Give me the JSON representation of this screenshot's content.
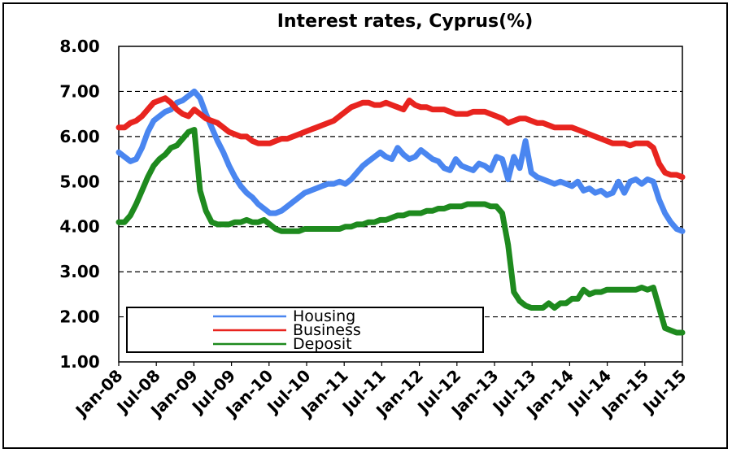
{
  "chart_data": {
    "type": "line",
    "title": "Interest rates, Cyprus(%)",
    "xlabel": "",
    "ylabel": "",
    "ylim": [
      1,
      8
    ],
    "yticks": [
      "1.00",
      "2.00",
      "3.00",
      "4.00",
      "5.00",
      "6.00",
      "7.00",
      "8.00"
    ],
    "grid": "horizontal dashed",
    "legend": "bottom-left",
    "x_ticks": [
      "Jan-08",
      "Jul-08",
      "Jan-09",
      "Jul-09",
      "Jan-10",
      "Jul-10",
      "Jan-11",
      "Jul-11",
      "Jan-12",
      "Jul-12",
      "Jan-13",
      "Jul-13",
      "Jan-14",
      "Jul-14",
      "Jan-15",
      "Jul-15"
    ],
    "series": [
      {
        "name": "Housing",
        "color": "#4a86f0",
        "values": [
          5.65,
          5.55,
          5.45,
          5.5,
          5.75,
          6.1,
          6.35,
          6.45,
          6.55,
          6.6,
          6.75,
          6.8,
          6.9,
          7.0,
          6.85,
          6.5,
          6.2,
          5.9,
          5.65,
          5.35,
          5.1,
          4.9,
          4.75,
          4.65,
          4.5,
          4.4,
          4.3,
          4.3,
          4.35,
          4.45,
          4.55,
          4.65,
          4.75,
          4.8,
          4.85,
          4.9,
          4.95,
          4.95,
          5.0,
          4.95,
          5.05,
          5.2,
          5.35,
          5.45,
          5.55,
          5.65,
          5.55,
          5.5,
          5.75,
          5.6,
          5.5,
          5.55,
          5.7,
          5.6,
          5.5,
          5.45,
          5.3,
          5.25,
          5.5,
          5.35,
          5.3,
          5.25,
          5.4,
          5.35,
          5.25,
          5.55,
          5.5,
          5.05,
          5.55,
          5.3,
          5.9,
          5.2,
          5.1,
          5.05,
          5.0,
          4.95,
          5.0,
          4.95,
          4.9,
          5.0,
          4.8,
          4.85,
          4.75,
          4.8,
          4.7,
          4.75,
          5.0,
          4.75,
          5.0,
          5.05,
          4.95,
          5.05,
          5.0,
          4.6,
          4.3,
          4.1,
          3.95,
          3.9
        ]
      },
      {
        "name": "Business",
        "color": "#e8241f",
        "values": [
          6.2,
          6.2,
          6.3,
          6.35,
          6.45,
          6.6,
          6.75,
          6.8,
          6.85,
          6.75,
          6.6,
          6.5,
          6.45,
          6.6,
          6.5,
          6.4,
          6.35,
          6.3,
          6.2,
          6.1,
          6.05,
          6.0,
          6.0,
          5.9,
          5.85,
          5.85,
          5.85,
          5.9,
          5.95,
          5.95,
          6.0,
          6.05,
          6.1,
          6.15,
          6.2,
          6.25,
          6.3,
          6.35,
          6.45,
          6.55,
          6.65,
          6.7,
          6.75,
          6.75,
          6.7,
          6.7,
          6.75,
          6.7,
          6.65,
          6.6,
          6.8,
          6.7,
          6.65,
          6.65,
          6.6,
          6.6,
          6.6,
          6.55,
          6.5,
          6.5,
          6.5,
          6.55,
          6.55,
          6.55,
          6.5,
          6.45,
          6.4,
          6.3,
          6.35,
          6.4,
          6.4,
          6.35,
          6.3,
          6.3,
          6.25,
          6.2,
          6.2,
          6.2,
          6.2,
          6.15,
          6.1,
          6.05,
          6.0,
          5.95,
          5.9,
          5.85,
          5.85,
          5.85,
          5.8,
          5.85,
          5.85,
          5.85,
          5.75,
          5.4,
          5.2,
          5.15,
          5.15,
          5.1
        ]
      },
      {
        "name": "Deposit",
        "color": "#1e8a1e",
        "values": [
          4.1,
          4.1,
          4.25,
          4.5,
          4.8,
          5.1,
          5.35,
          5.5,
          5.6,
          5.75,
          5.8,
          5.95,
          6.1,
          6.15,
          4.8,
          4.35,
          4.1,
          4.05,
          4.05,
          4.05,
          4.1,
          4.1,
          4.15,
          4.1,
          4.1,
          4.15,
          4.05,
          3.95,
          3.9,
          3.9,
          3.9,
          3.9,
          3.95,
          3.95,
          3.95,
          3.95,
          3.95,
          3.95,
          3.95,
          4.0,
          4.0,
          4.05,
          4.05,
          4.1,
          4.1,
          4.15,
          4.15,
          4.2,
          4.25,
          4.25,
          4.3,
          4.3,
          4.3,
          4.35,
          4.35,
          4.4,
          4.4,
          4.45,
          4.45,
          4.45,
          4.5,
          4.5,
          4.5,
          4.5,
          4.45,
          4.45,
          4.3,
          3.6,
          2.55,
          2.35,
          2.25,
          2.2,
          2.2,
          2.2,
          2.3,
          2.2,
          2.3,
          2.3,
          2.4,
          2.4,
          2.6,
          2.5,
          2.55,
          2.55,
          2.6,
          2.6,
          2.6,
          2.6,
          2.6,
          2.6,
          2.65,
          2.6,
          2.65,
          2.2,
          1.75,
          1.7,
          1.65,
          1.65
        ]
      }
    ]
  }
}
